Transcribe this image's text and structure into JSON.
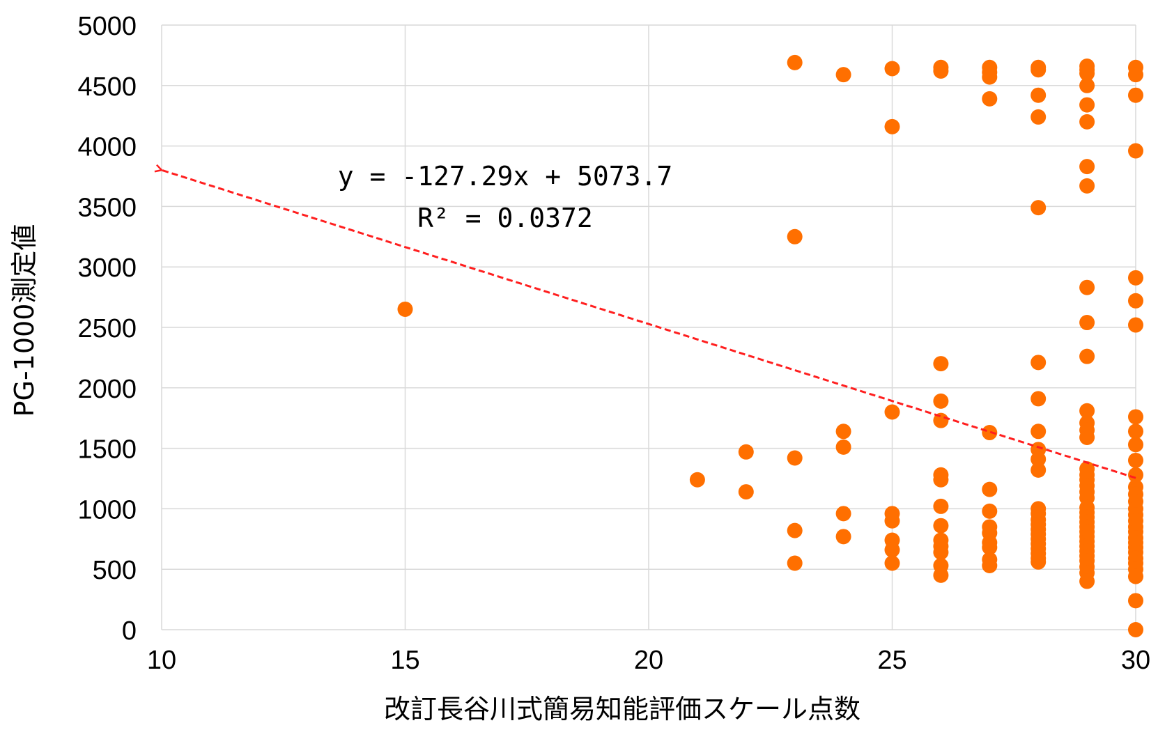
{
  "chart_data": {
    "type": "scatter",
    "title": "",
    "xlabel": "改訂長谷川式簡易知能評価スケール点数",
    "ylabel": "PG-1000測定値",
    "xlim": [
      10,
      30
    ],
    "ylim": [
      0,
      5000
    ],
    "xticks": [
      "10",
      "15",
      "20",
      "25",
      "30"
    ],
    "yticks": [
      "0",
      "500",
      "1000",
      "1500",
      "2000",
      "2500",
      "3000",
      "3500",
      "4000",
      "4500",
      "5000"
    ],
    "grid": true,
    "legend": "none",
    "marker_color": "#FF6F00",
    "points": [
      [
        15,
        2650
      ],
      [
        21,
        1240
      ],
      [
        22,
        1470
      ],
      [
        22,
        1140
      ],
      [
        23,
        4690
      ],
      [
        23,
        3250
      ],
      [
        23,
        1420
      ],
      [
        23,
        820
      ],
      [
        23,
        550
      ],
      [
        24,
        4590
      ],
      [
        24,
        1640
      ],
      [
        24,
        1510
      ],
      [
        24,
        960
      ],
      [
        24,
        770
      ],
      [
        25,
        4640
      ],
      [
        25,
        4160
      ],
      [
        25,
        1800
      ],
      [
        25,
        960
      ],
      [
        25,
        900
      ],
      [
        25,
        740
      ],
      [
        25,
        660
      ],
      [
        25,
        550
      ],
      [
        26,
        4650
      ],
      [
        26,
        4620
      ],
      [
        26,
        2200
      ],
      [
        26,
        1890
      ],
      [
        26,
        1730
      ],
      [
        26,
        1280
      ],
      [
        26,
        1240
      ],
      [
        26,
        1020
      ],
      [
        26,
        860
      ],
      [
        26,
        740
      ],
      [
        26,
        690
      ],
      [
        26,
        640
      ],
      [
        26,
        530
      ],
      [
        26,
        450
      ],
      [
        27,
        4650
      ],
      [
        27,
        4610
      ],
      [
        27,
        4570
      ],
      [
        27,
        4390
      ],
      [
        27,
        1630
      ],
      [
        27,
        1160
      ],
      [
        27,
        980
      ],
      [
        27,
        850
      ],
      [
        27,
        800
      ],
      [
        27,
        720
      ],
      [
        27,
        680
      ],
      [
        27,
        580
      ],
      [
        27,
        530
      ],
      [
        28,
        4650
      ],
      [
        28,
        4630
      ],
      [
        28,
        4420
      ],
      [
        28,
        4240
      ],
      [
        28,
        3490
      ],
      [
        28,
        2210
      ],
      [
        28,
        1910
      ],
      [
        28,
        1640
      ],
      [
        28,
        1490
      ],
      [
        28,
        1410
      ],
      [
        28,
        1320
      ],
      [
        28,
        1000
      ],
      [
        28,
        960
      ],
      [
        28,
        910
      ],
      [
        28,
        870
      ],
      [
        28,
        830
      ],
      [
        28,
        790
      ],
      [
        28,
        750
      ],
      [
        28,
        710
      ],
      [
        28,
        670
      ],
      [
        28,
        630
      ],
      [
        28,
        590
      ],
      [
        28,
        560
      ],
      [
        29,
        4660
      ],
      [
        29,
        4630
      ],
      [
        29,
        4600
      ],
      [
        29,
        4500
      ],
      [
        29,
        4340
      ],
      [
        29,
        4200
      ],
      [
        29,
        3830
      ],
      [
        29,
        3670
      ],
      [
        29,
        2830
      ],
      [
        29,
        2540
      ],
      [
        29,
        2260
      ],
      [
        29,
        1810
      ],
      [
        29,
        1710
      ],
      [
        29,
        1650
      ],
      [
        29,
        1590
      ],
      [
        29,
        1330
      ],
      [
        29,
        1280
      ],
      [
        29,
        1240
      ],
      [
        29,
        1190
      ],
      [
        29,
        1140
      ],
      [
        29,
        1090
      ],
      [
        29,
        1010
      ],
      [
        29,
        970
      ],
      [
        29,
        930
      ],
      [
        29,
        890
      ],
      [
        29,
        850
      ],
      [
        29,
        810
      ],
      [
        29,
        770
      ],
      [
        29,
        730
      ],
      [
        29,
        690
      ],
      [
        29,
        650
      ],
      [
        29,
        610
      ],
      [
        29,
        570
      ],
      [
        29,
        520
      ],
      [
        29,
        470
      ],
      [
        29,
        400
      ],
      [
        30,
        4650
      ],
      [
        30,
        4590
      ],
      [
        30,
        4420
      ],
      [
        30,
        3960
      ],
      [
        30,
        2910
      ],
      [
        30,
        2720
      ],
      [
        30,
        2520
      ],
      [
        30,
        1760
      ],
      [
        30,
        1640
      ],
      [
        30,
        1530
      ],
      [
        30,
        1400
      ],
      [
        30,
        1280
      ],
      [
        30,
        1180
      ],
      [
        30,
        1120
      ],
      [
        30,
        1060
      ],
      [
        30,
        1000
      ],
      [
        30,
        950
      ],
      [
        30,
        900
      ],
      [
        30,
        850
      ],
      [
        30,
        810
      ],
      [
        30,
        760
      ],
      [
        30,
        720
      ],
      [
        30,
        680
      ],
      [
        30,
        640
      ],
      [
        30,
        590
      ],
      [
        30,
        550
      ],
      [
        30,
        500
      ],
      [
        30,
        440
      ],
      [
        30,
        240
      ],
      [
        30,
        0
      ]
    ],
    "trendline": {
      "type": "linear",
      "style": "dashed",
      "color": "#FF1F1F",
      "slope": -127.29,
      "intercept": 5073.7,
      "x_range": [
        10,
        30
      ],
      "equation_text": "y = -127.29x + 5073.7",
      "r2_text": "R² = 0.0372"
    }
  }
}
